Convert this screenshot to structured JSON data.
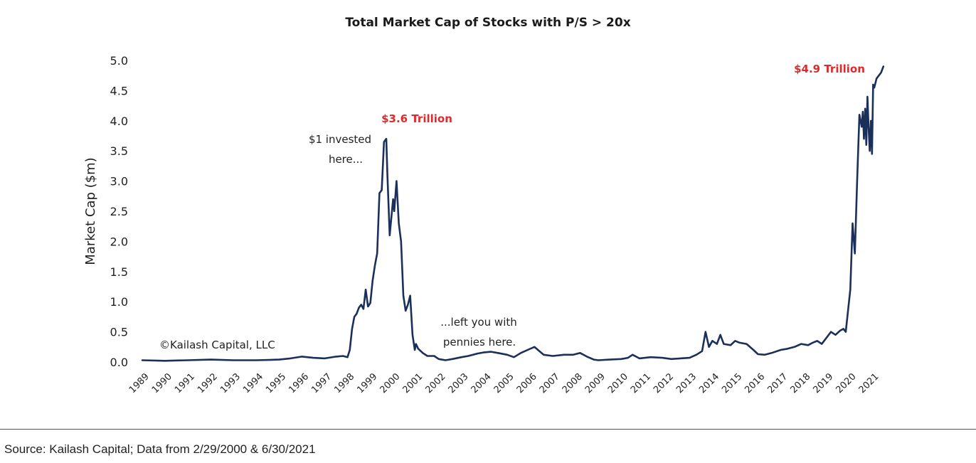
{
  "chart_data": {
    "type": "line",
    "title": "Total Market Cap of Stocks with P/S > 20x",
    "xlabel": "",
    "ylabel": "Market Cap ($m)",
    "ylim": [
      0,
      5
    ],
    "xlim": [
      1989,
      2021.6
    ],
    "y_ticks": [
      "0.0",
      "0.5",
      "1.0",
      "1.5",
      "2.0",
      "2.5",
      "3.0",
      "3.5",
      "4.0",
      "4.5",
      "5.0"
    ],
    "x_ticks": [
      "1989",
      "1990",
      "1991",
      "1992",
      "1993",
      "1994",
      "1995",
      "1996",
      "1997",
      "1998",
      "1999",
      "2000",
      "2001",
      "2002",
      "2003",
      "2004",
      "2005",
      "2006",
      "2007",
      "2008",
      "2009",
      "2010",
      "2011",
      "2012",
      "2013",
      "2014",
      "2015",
      "2016",
      "2017",
      "2018",
      "2019",
      "2020",
      "2021"
    ],
    "grid": false,
    "line_color": "#1b2f5b",
    "annotation_color": "#e0292b",
    "annotations": {
      "peak_2000": "$3.6 Trillion",
      "peak_2021": "$4.9 Trillion",
      "invested_line1": "$1 invested",
      "invested_line2": "here...",
      "left_line1": "...left you with",
      "left_line2": "pennies here.",
      "copyright": "©Kailash Capital, LLC"
    },
    "series": [
      {
        "x": [
          1989.0,
          1990.0,
          1991.0,
          1992.0,
          1993.0,
          1994.0,
          1995.0,
          1995.5,
          1996.0,
          1996.5,
          1997.0,
          1997.5,
          1997.8,
          1998.0,
          1998.1,
          1998.2,
          1998.3,
          1998.4,
          1998.5,
          1998.6,
          1998.7,
          1998.8,
          1998.9,
          1999.0,
          1999.1,
          1999.2,
          1999.3,
          1999.4,
          1999.5,
          1999.6,
          1999.7,
          1999.75,
          1999.8,
          1999.85,
          1999.9,
          2000.0,
          2000.05,
          2000.15,
          2000.25,
          2000.35,
          2000.45,
          2000.55,
          2000.65,
          2000.75,
          2000.85,
          2000.95,
          2001.0,
          2001.1,
          2001.3,
          2001.5,
          2001.8,
          2002.0,
          2002.3,
          2002.6,
          2003.0,
          2003.3,
          2003.7,
          2004.0,
          2004.3,
          2004.6,
          2005.0,
          2005.3,
          2005.6,
          2005.9,
          2006.2,
          2006.6,
          2007.0,
          2007.5,
          2007.9,
          2008.2,
          2008.5,
          2008.8,
          2009.0,
          2009.5,
          2010.0,
          2010.3,
          2010.5,
          2010.8,
          2011.3,
          2011.8,
          2012.2,
          2012.6,
          2013.0,
          2013.3,
          2013.55,
          2013.7,
          2013.85,
          2014.0,
          2014.2,
          2014.35,
          2014.5,
          2014.8,
          2015.0,
          2015.2,
          2015.5,
          2015.8,
          2016.0,
          2016.3,
          2016.6,
          2017.0,
          2017.3,
          2017.6,
          2017.9,
          2018.2,
          2018.4,
          2018.6,
          2018.8,
          2019.0,
          2019.2,
          2019.4,
          2019.6,
          2019.75,
          2019.85,
          2019.95,
          2020.05,
          2020.15,
          2020.25,
          2020.35,
          2020.45,
          2020.55,
          2020.6,
          2020.65,
          2020.7,
          2020.75,
          2020.8,
          2020.85,
          2020.9,
          2020.95,
          2021.0,
          2021.05,
          2021.1,
          2021.2,
          2021.3,
          2021.4,
          2021.5
        ],
        "values": [
          0.03,
          0.02,
          0.03,
          0.04,
          0.03,
          0.03,
          0.04,
          0.06,
          0.09,
          0.07,
          0.06,
          0.09,
          0.1,
          0.08,
          0.2,
          0.55,
          0.75,
          0.8,
          0.9,
          0.95,
          0.88,
          1.2,
          0.92,
          0.98,
          1.35,
          1.6,
          1.8,
          2.8,
          2.85,
          3.65,
          3.7,
          3.1,
          2.6,
          2.1,
          2.3,
          2.7,
          2.5,
          3.0,
          2.3,
          2.0,
          1.1,
          0.85,
          0.95,
          1.1,
          0.45,
          0.2,
          0.3,
          0.22,
          0.15,
          0.1,
          0.1,
          0.05,
          0.03,
          0.05,
          0.08,
          0.1,
          0.14,
          0.16,
          0.17,
          0.15,
          0.12,
          0.08,
          0.15,
          0.2,
          0.25,
          0.12,
          0.1,
          0.12,
          0.12,
          0.15,
          0.09,
          0.04,
          0.03,
          0.04,
          0.05,
          0.07,
          0.12,
          0.06,
          0.08,
          0.07,
          0.05,
          0.06,
          0.07,
          0.12,
          0.18,
          0.5,
          0.25,
          0.35,
          0.3,
          0.45,
          0.3,
          0.28,
          0.35,
          0.32,
          0.3,
          0.2,
          0.13,
          0.12,
          0.15,
          0.2,
          0.22,
          0.25,
          0.3,
          0.28,
          0.32,
          0.35,
          0.3,
          0.4,
          0.5,
          0.45,
          0.52,
          0.55,
          0.5,
          0.85,
          1.2,
          2.3,
          1.8,
          3.0,
          4.1,
          3.9,
          4.15,
          3.7,
          4.2,
          3.6,
          4.4,
          3.9,
          3.5,
          4.0,
          3.45,
          4.6,
          4.55,
          4.7,
          4.75,
          4.8,
          4.9
        ]
      }
    ]
  },
  "footer": {
    "source": "Source: Kailash Capital; Data from 2/29/2000 & 6/30/2021"
  }
}
